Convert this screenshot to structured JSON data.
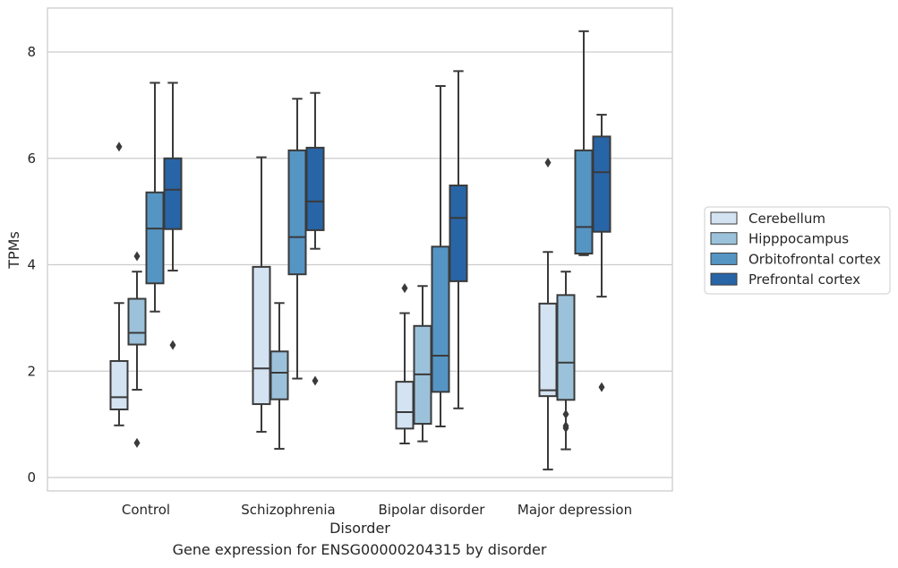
{
  "caption": "Gene expression for ENSG00000204315 by disorder",
  "chart_data": {
    "type": "box",
    "title": "",
    "xlabel": "Disorder",
    "ylabel": "TPMs",
    "ylim": [
      -0.25,
      8.8
    ],
    "yticks": [
      0,
      2,
      4,
      6,
      8
    ],
    "grid": true,
    "legend_position": "right",
    "categories": [
      "Control",
      "Schizophrenia",
      "Bipolar disorder",
      "Major depression"
    ],
    "series": [
      {
        "name": "Cerebellum",
        "color": "#d4e3f2",
        "boxes": [
          {
            "whisker_low": 0.98,
            "q1": 1.28,
            "median": 1.51,
            "q3": 2.19,
            "whisker_high": 3.28,
            "outliers": [
              6.22
            ]
          },
          {
            "whisker_low": 0.86,
            "q1": 1.38,
            "median": 2.05,
            "q3": 3.96,
            "whisker_high": 6.02,
            "outliers": []
          },
          {
            "whisker_low": 0.64,
            "q1": 0.92,
            "median": 1.23,
            "q3": 1.8,
            "whisker_high": 3.09,
            "outliers": [
              3.56
            ]
          },
          {
            "whisker_low": 0.15,
            "q1": 1.53,
            "median": 1.64,
            "q3": 3.27,
            "whisker_high": 4.24,
            "outliers": [
              5.92
            ]
          }
        ]
      },
      {
        "name": "Hipppocampus",
        "color": "#9cc2db",
        "boxes": [
          {
            "whisker_low": 1.65,
            "q1": 2.5,
            "median": 2.72,
            "q3": 3.36,
            "whisker_high": 3.87,
            "outliers": [
              4.16,
              0.65
            ]
          },
          {
            "whisker_low": 0.54,
            "q1": 1.47,
            "median": 1.97,
            "q3": 2.37,
            "whisker_high": 3.28,
            "outliers": []
          },
          {
            "whisker_low": 0.68,
            "q1": 1.01,
            "median": 1.94,
            "q3": 2.85,
            "whisker_high": 3.6,
            "outliers": []
          },
          {
            "whisker_low": 0.53,
            "q1": 1.46,
            "median": 2.16,
            "q3": 3.43,
            "whisker_high": 3.87,
            "outliers": [
              1.19,
              0.97,
              0.93
            ]
          }
        ]
      },
      {
        "name": "Orbitofrontal cortex",
        "color": "#5595c4",
        "boxes": [
          {
            "whisker_low": 3.12,
            "q1": 3.65,
            "median": 4.68,
            "q3": 5.36,
            "whisker_high": 7.42,
            "outliers": []
          },
          {
            "whisker_low": 1.86,
            "q1": 3.82,
            "median": 4.52,
            "q3": 6.15,
            "whisker_high": 7.12,
            "outliers": []
          },
          {
            "whisker_low": 0.96,
            "q1": 1.61,
            "median": 2.29,
            "q3": 4.34,
            "whisker_high": 7.36,
            "outliers": []
          },
          {
            "whisker_low": 4.18,
            "q1": 4.21,
            "median": 4.71,
            "q3": 6.15,
            "whisker_high": 8.39,
            "outliers": []
          }
        ]
      },
      {
        "name": "Prefrontal cortex",
        "color": "#2865a7",
        "boxes": [
          {
            "whisker_low": 3.89,
            "q1": 4.67,
            "median": 5.41,
            "q3": 6.0,
            "whisker_high": 7.42,
            "outliers": [
              2.49
            ]
          },
          {
            "whisker_low": 4.3,
            "q1": 4.65,
            "median": 5.19,
            "q3": 6.2,
            "whisker_high": 7.23,
            "outliers": [
              1.82
            ]
          },
          {
            "whisker_low": 1.3,
            "q1": 3.69,
            "median": 4.88,
            "q3": 5.49,
            "whisker_high": 7.64,
            "outliers": []
          },
          {
            "whisker_low": 3.4,
            "q1": 4.62,
            "median": 5.74,
            "q3": 6.41,
            "whisker_high": 6.82,
            "outliers": [
              1.7
            ]
          }
        ]
      }
    ]
  }
}
